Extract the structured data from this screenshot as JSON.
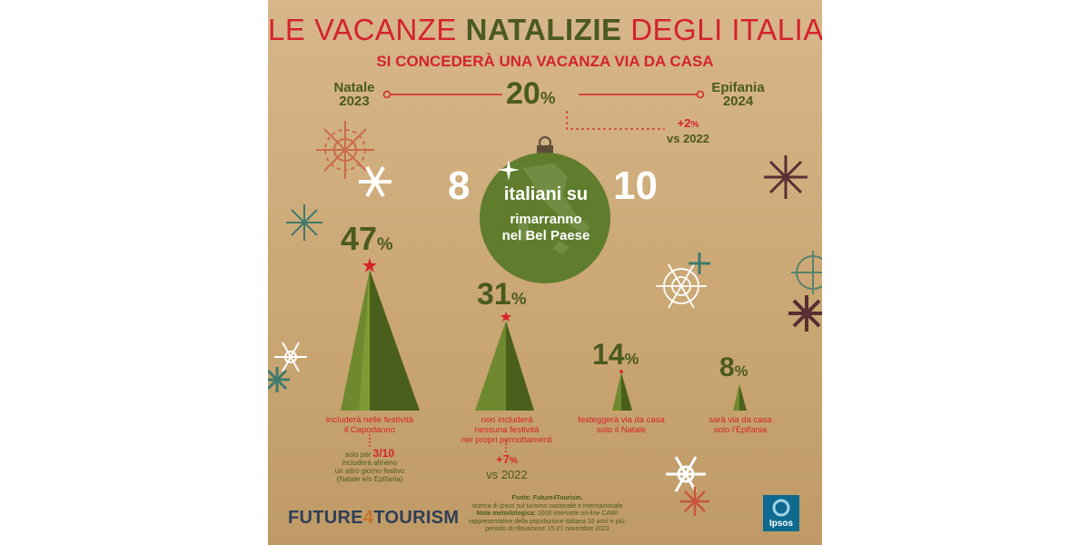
{
  "header": {
    "title_pre": "LE VACANZE ",
    "title_bold": "NATALIZIE",
    "title_post": " DEGLI ITALIANI",
    "subtitle": "SI CONCEDERÀ UNA VACANZA VIA DA CASA"
  },
  "timeline": {
    "start_line1": "Natale",
    "start_line2": "2023",
    "end_line1": "Epifania",
    "end_line2": "2024",
    "value": "20",
    "unit": "%",
    "delta": "+2",
    "delta_unit": "%",
    "delta_vs": "vs 2022"
  },
  "ornament": {
    "num_left": "8",
    "num_right": "10",
    "line1": "italiani su",
    "line2": "rimarranno",
    "line3": "nel Bel Paese"
  },
  "trees": [
    {
      "value": "47",
      "unit": "%",
      "caption1": "includerà nelle festività",
      "caption2": "il Capodanno",
      "caption3": ""
    },
    {
      "value": "31",
      "unit": "%",
      "caption1": "non includerà",
      "caption2": "nessuna festività",
      "caption3": "nei propri pernottamenti"
    },
    {
      "value": "14",
      "unit": "%",
      "caption1": "festeggerà via da casa",
      "caption2": "solo il Natale",
      "caption3": ""
    },
    {
      "value": "8",
      "unit": "%",
      "caption1": "sarà via da casa",
      "caption2": "solo l'Epifania",
      "caption3": ""
    }
  ],
  "tree1_note": {
    "pre": "solo per ",
    "value": "3/10",
    "l2": "includerà almeno",
    "l3": "un altro giorno festivo",
    "l4": "(Natale e/o Epifania)"
  },
  "tree2_delta": {
    "value": "+7",
    "unit": "%",
    "vs": "vs 2022"
  },
  "footer": {
    "logo_a": "FUTURE",
    "logo_num": "4",
    "logo_b": "TOURISM",
    "source_title": "Fonte: Future4Tourism,",
    "source_l1": "ricerca di Ipsos sul turismo nazionale e internazionale",
    "method_label": "Nota metodologica:",
    "method_l1": " 1000 interviste on-line CAWI",
    "method_l2": "rappresentative della popolazione italiana 16 anni e più;",
    "method_l3": "periodo di rilevazione 15-21 novembre 2023",
    "ipsos": "Ipsos"
  },
  "colors": {
    "accent_red": "#d4232c",
    "olive": "#4b5a1f",
    "tree_light": "#6f8a2e",
    "tree_dark": "#4a5f1c",
    "ornament": "#5f7d2c"
  }
}
